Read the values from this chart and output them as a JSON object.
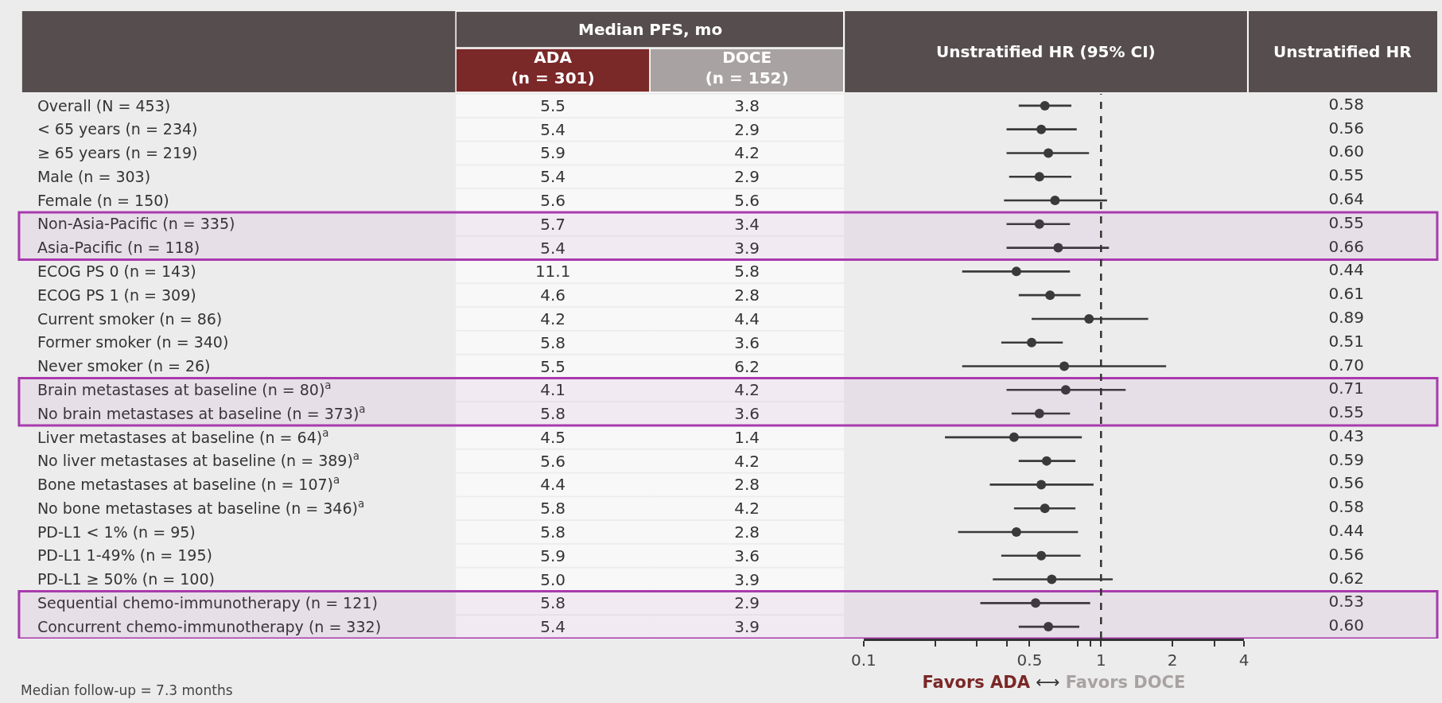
{
  "chart_data": [
    {
      "type": "heatmap",
      "title": "Median PFS, mo",
      "categories": [
        "ADA\n(n = 301)",
        "DOCE\n(n = 152)"
      ],
      "y_categories": [
        "Overall (N = 453)",
        "< 65 years (n = 234)",
        "≥ 65 years (n = 219)",
        "Male (n = 303)",
        "Female (n = 150)",
        "Non-Asia-Pacific (n = 335)",
        "Asia-Pacific (n = 118)",
        "ECOG PS 0 (n = 143)",
        "ECOG PS 1 (n = 309)",
        "Current smoker (n = 86)",
        "Former smoker (n = 340)",
        "Never smoker (n = 26)",
        "Brain metastases at baseline (n = 80)$^{a}$",
        "No brain metastases at baseline (n = 373)$^{a}$",
        "Liver metastases at baseline (n = 64)$^{a}$",
        "No liver metastases at baseline (n = 389)$^{a}$",
        "Bone metastases at baseline (n = 107)$^{a}$",
        "No bone metastases at baseline (n = 346)$^{a}$",
        "PD-L1 < 1% (n = 95)",
        "PD-L1 1-49% (n = 195)",
        "PD-L1 ≥ 50% (n = 100)",
        "Sequential chemo-immunotherapy (n = 121)",
        "Concurrent chemo-immunotherapy (n = 332)"
      ],
      "cells": [
        [
          5.5,
          3.8
        ],
        [
          5.4,
          2.9
        ],
        [
          5.9,
          4.2
        ],
        [
          5.4,
          2.9
        ],
        [
          5.6,
          5.6
        ],
        [
          5.7,
          3.4
        ],
        [
          5.4,
          3.9
        ],
        [
          11.1,
          5.8
        ],
        [
          4.6,
          2.8
        ],
        [
          4.2,
          4.4
        ],
        [
          5.8,
          3.6
        ],
        [
          5.5,
          6.2
        ],
        [
          4.1,
          4.2
        ],
        [
          5.8,
          3.6
        ],
        [
          4.5,
          1.4
        ],
        [
          5.6,
          4.2
        ],
        [
          4.4,
          2.8
        ],
        [
          5.8,
          4.2
        ],
        [
          5.8,
          2.8
        ],
        [
          5.9,
          3.6
        ],
        [
          5.0,
          3.9
        ],
        [
          5.8,
          2.9
        ],
        [
          5.4,
          3.9
        ]
      ],
      "cell_labels": [
        [
          "5.5",
          "3.8"
        ],
        [
          "5.4",
          "2.9"
        ],
        [
          "5.9",
          "4.2"
        ],
        [
          "5.4",
          "2.9"
        ],
        [
          "5.6",
          "5.6"
        ],
        [
          "5.7",
          "3.4"
        ],
        [
          "5.4",
          "3.9"
        ],
        [
          "11.1",
          "5.8"
        ],
        [
          "4.6",
          "2.8"
        ],
        [
          "4.2",
          "4.4"
        ],
        [
          "5.8",
          "3.6"
        ],
        [
          "5.5",
          "6.2"
        ],
        [
          "4.1",
          "4.2"
        ],
        [
          "5.8",
          "3.6"
        ],
        [
          "4.5",
          "1.4"
        ],
        [
          "5.6",
          "4.2"
        ],
        [
          "4.4",
          "2.8"
        ],
        [
          "5.8",
          "4.2"
        ],
        [
          "5.8",
          "2.8"
        ],
        [
          "5.9",
          "3.6"
        ],
        [
          "5.0",
          "3.9"
        ],
        [
          "5.8",
          "2.9"
        ],
        [
          "5.4",
          "3.9"
        ]
      ],
      "bands": [
        {
          "axis": "y",
          "from": "Non-Asia-Pacific (n = 335)",
          "to": "Asia-Pacific (n = 118)",
          "color": "#a83aae"
        },
        {
          "axis": "y",
          "from": "Brain metastases at baseline (n = 80)$^{a}$",
          "to": "No brain metastases at baseline (n = 373)$^{a}$",
          "color": "#a83aae"
        },
        {
          "axis": "y",
          "from": "Sequential chemo-immunotherapy (n = 121)",
          "to": "Concurrent chemo-immunotherapy (n = 332)",
          "color": "#a83aae"
        }
      ]
    },
    {
      "type": "scatter",
      "title": "Unstratified HR (95% CI)",
      "orientation": "horizontal",
      "tick_labels": "x",
      "categories": [
        "Overall (N = 453)",
        "< 65 years (n = 234)",
        "≥ 65 years (n = 219)",
        "Male (n = 303)",
        "Female (n = 150)",
        "Non-Asia-Pacific (n = 335)",
        "Asia-Pacific (n = 118)",
        "ECOG PS 0 (n = 143)",
        "ECOG PS 1 (n = 309)",
        "Current smoker (n = 86)",
        "Former smoker (n = 340)",
        "Never smoker (n = 26)",
        "Brain metastases at baseline (n = 80)$^{a}$",
        "No brain metastases at baseline (n = 373)$^{a}$",
        "Liver metastases at baseline (n = 64)$^{a}$",
        "No liver metastases at baseline (n = 389)$^{a}$",
        "Bone metastases at baseline (n = 107)$^{a}$",
        "No bone metastases at baseline (n = 346)$^{a}$",
        "PD-L1 < 1% (n = 95)",
        "PD-L1 1-49% (n = 195)",
        "PD-L1 ≥ 50% (n = 100)",
        "Sequential chemo-immunotherapy (n = 121)",
        "Concurrent chemo-immunotherapy (n = 332)"
      ],
      "values": [
        0.58,
        0.56,
        0.6,
        0.55,
        0.64,
        0.55,
        0.66,
        0.44,
        0.61,
        0.89,
        0.51,
        0.7,
        0.71,
        0.55,
        0.43,
        0.59,
        0.56,
        0.58,
        0.44,
        0.56,
        0.62,
        0.53,
        0.6
      ],
      "errors": [
        [
          0.45,
          0.75
        ],
        [
          0.4,
          0.79
        ],
        [
          0.4,
          0.89
        ],
        [
          0.41,
          0.75
        ],
        [
          0.39,
          1.06
        ],
        [
          0.4,
          0.74
        ],
        [
          0.4,
          1.08
        ],
        [
          0.26,
          0.74
        ],
        [
          0.45,
          0.82
        ],
        [
          0.51,
          1.58
        ],
        [
          0.38,
          0.69
        ],
        [
          0.26,
          1.88
        ],
        [
          0.4,
          1.27
        ],
        [
          0.42,
          0.74
        ],
        [
          0.22,
          0.83
        ],
        [
          0.45,
          0.78
        ],
        [
          0.34,
          0.93
        ],
        [
          0.43,
          0.78
        ],
        [
          0.25,
          0.8
        ],
        [
          0.38,
          0.82
        ],
        [
          0.35,
          1.12
        ],
        [
          0.31,
          0.9
        ],
        [
          0.45,
          0.81
        ]
      ],
      "value_labels": [
        "0.58",
        "0.56",
        "0.60",
        "0.55",
        "0.64",
        "0.55",
        "0.66",
        "0.44",
        "0.61",
        "0.89",
        "0.51",
        "0.70",
        "0.71",
        "0.55",
        "0.43",
        "0.59",
        "0.56",
        "0.58",
        "0.44",
        "0.56",
        "0.62",
        "0.53",
        "0.60"
      ],
      "color": "#3a3a3a",
      "marker": "circle",
      "log": "x",
      "xlim": [
        0.1,
        4
      ],
      "xticks": [
        0.1,
        {
          "value": 0.2,
          "label": null
        },
        {
          "value": 0.3,
          "label": null
        },
        {
          "value": 0.4,
          "label": null
        },
        0.5,
        {
          "value": 0.8,
          "label": null
        },
        {
          "value": 0.9,
          "label": null
        },
        1,
        2,
        {
          "value": 3,
          "label": null
        },
        4
      ],
      "xlabel": "Favors ADA ⟷ Favors DOCE",
      "ref_lines": [
        {
          "axis": "x",
          "value": 1,
          "line_style": "dashed"
        }
      ],
      "annotations": [
        "Unstratified HR",
        "Median follow-up = 7.3 months"
      ]
    }
  ]
}
